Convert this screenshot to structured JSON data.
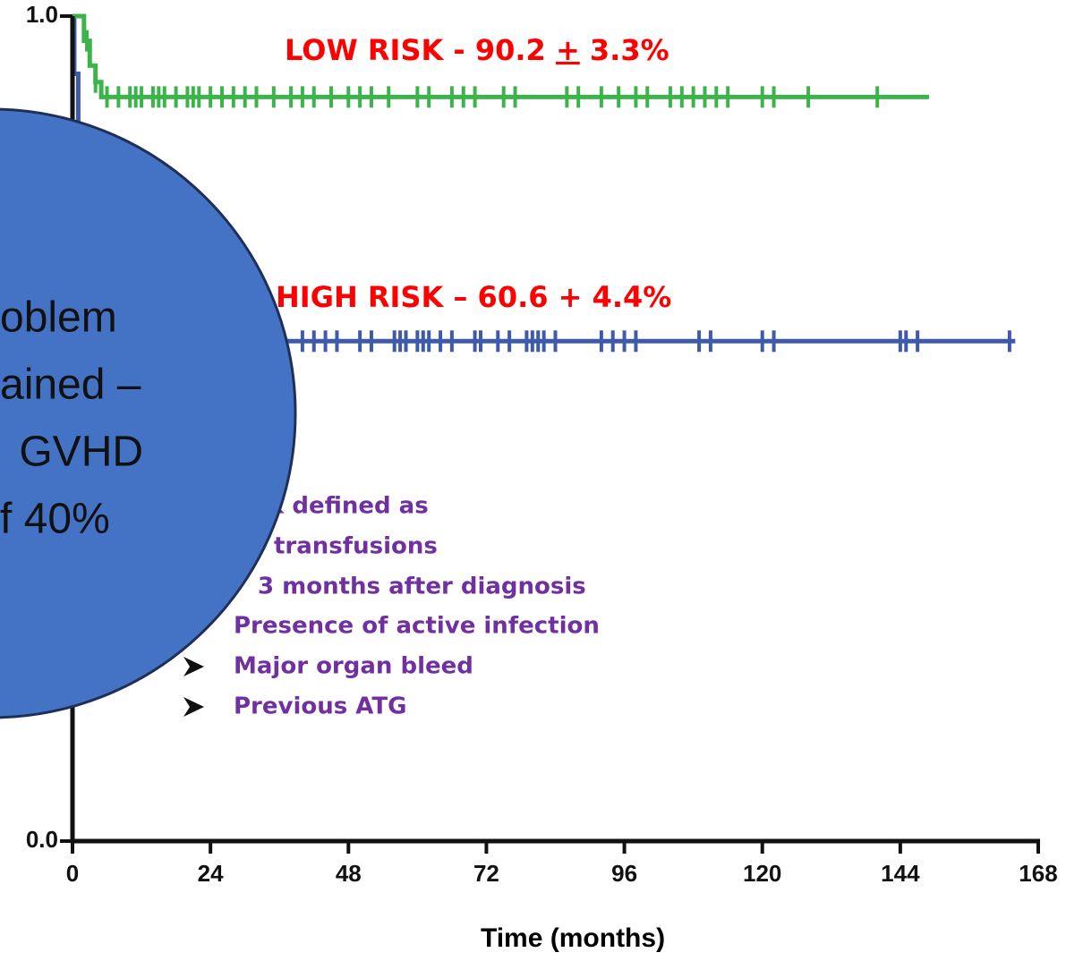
{
  "chart_data": {
    "type": "line",
    "xlabel": "Time (months)",
    "xlim": [
      0,
      168
    ],
    "xticks": [
      0,
      24,
      48,
      72,
      96,
      120,
      144,
      168
    ],
    "ylim": [
      0,
      1
    ],
    "yticks": [
      {
        "value": 0,
        "label": "0.0"
      },
      {
        "value": 1,
        "label": "1.0"
      }
    ],
    "series": [
      {
        "name": "LOW RISK",
        "color": "#3cb44b",
        "x": [
          0,
          2,
          2,
          3,
          3,
          4,
          4,
          5,
          5,
          149
        ],
        "values": [
          1,
          1,
          0.97,
          0.97,
          0.94,
          0.94,
          0.92,
          0.92,
          0.902,
          0.902
        ],
        "censored": [
          2.5,
          4,
          6,
          8,
          10,
          11,
          12,
          14,
          15,
          16,
          18,
          20,
          21,
          22,
          24,
          26,
          28,
          30,
          32,
          35,
          38,
          40,
          42,
          45,
          48,
          50,
          52,
          55,
          60,
          62,
          66,
          68,
          70,
          75,
          77,
          86,
          88,
          92,
          95,
          98,
          100,
          104,
          106,
          108,
          110,
          112,
          114,
          120,
          122,
          128,
          140
        ]
      },
      {
        "name": "HIGH RISK",
        "color": "#3f5aa8",
        "x": [
          0,
          0.3,
          0.3,
          1,
          1,
          3,
          3,
          6,
          6,
          164
        ],
        "values": [
          1,
          1,
          0.93,
          0.93,
          0.8,
          0.8,
          0.7,
          0.7,
          0.606,
          0.606
        ],
        "censored": [
          40,
          42,
          44,
          46,
          50,
          52,
          56,
          57,
          58,
          60,
          61,
          62,
          64,
          66,
          70,
          71,
          74,
          76,
          79,
          80,
          81,
          82,
          84,
          92,
          94,
          96,
          98,
          109,
          111,
          120,
          122,
          144,
          145,
          147,
          163
        ]
      }
    ],
    "annotations": {
      "low": [
        "LOW RISK - 90.2 ",
        "+",
        " 3.3%"
      ],
      "high": "HIGH RISK – 60.6 + 4.4%",
      "criteria": [
        "k defined as",
        "transfusions",
        "3 months after diagnosis",
        "Presence of active infection",
        "Major organ bleed",
        "Previous ATG"
      ],
      "bubble": [
        "oblem",
        "ained –",
        " GVHD",
        "f 40%"
      ]
    }
  }
}
